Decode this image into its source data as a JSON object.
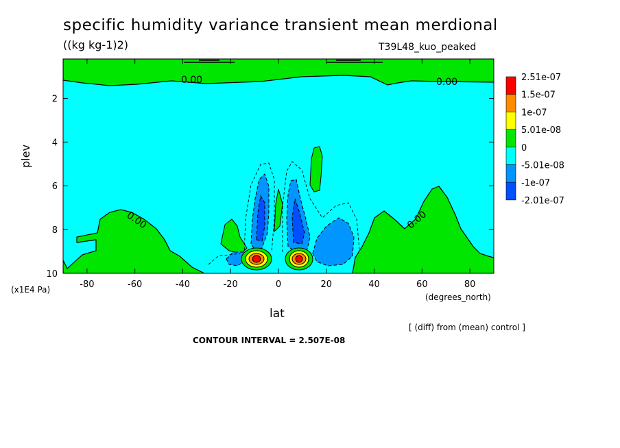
{
  "chart_data": {
    "type": "heatmap",
    "title": "specific humidity variance transient mean merdional",
    "units": "((kg kg-1)2)",
    "run_label": "T39L48_kuo_peaked",
    "xlabel": "lat",
    "xunit": "(degrees_north)",
    "ylabel": "plev",
    "yunit": "(x1E4 Pa)",
    "x_ticks": [
      "-80",
      "-60",
      "-40",
      "-20",
      "0",
      "20",
      "40",
      "60",
      "80"
    ],
    "y_ticks": [
      "2",
      "4",
      "6",
      "8",
      "10"
    ],
    "xlim": [
      -90,
      90
    ],
    "ylim": [
      10,
      0.2
    ],
    "contour_labels": [
      "0.00",
      "0.00",
      "0.00",
      "0.00"
    ],
    "legend": {
      "placement": "right",
      "levels": [
        "2.51e-07",
        "1.5e-07",
        "1e-07",
        "5.01e-08",
        "0",
        "-5.01e-08",
        "-1e-07",
        "-2.01e-07"
      ],
      "colors": [
        "#ff0000",
        "#ff8c00",
        "#ffff00",
        "#00e600",
        "#00ffff",
        "#0095ff",
        "#0050ff"
      ]
    },
    "features": [
      {
        "sign": "positive",
        "lat_range": [
          -90,
          -25
        ],
        "plev_range": [
          7,
          10
        ]
      },
      {
        "sign": "positive",
        "lat_range": [
          40,
          75
        ],
        "plev_range": [
          6,
          10
        ]
      },
      {
        "sign": "positive",
        "lat_range": [
          -90,
          90
        ],
        "plev_range": [
          0.2,
          1.1
        ]
      },
      {
        "sign": "negative",
        "lat_center": -8,
        "plev_center": 7.5,
        "min": -2.01e-07
      },
      {
        "sign": "negative",
        "lat_center": 8,
        "plev_center": 7.5,
        "min": -2.01e-07
      },
      {
        "sign": "positive",
        "lat_center": -9,
        "plev_center": 9.3,
        "max": 2.51e-07
      },
      {
        "sign": "positive",
        "lat_center": 9,
        "plev_center": 9.3,
        "max": 2.51e-07
      }
    ]
  },
  "footer": {
    "diff_note": "[ (diff) from (mean) control ]",
    "contour_interval": "CONTOUR INTERVAL = 2.507E-08"
  }
}
